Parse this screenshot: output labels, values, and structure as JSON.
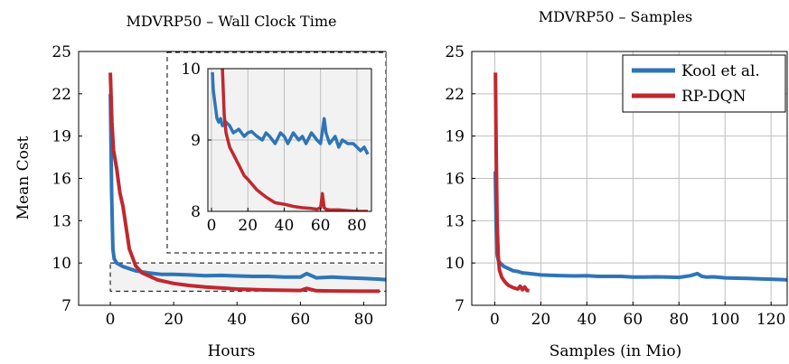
{
  "colors": {
    "kool": "#2e75b6",
    "rpdqn": "#c0282f",
    "grid": "#bfbfbf",
    "inset_bg": "#f2f2f2"
  },
  "chart_data": [
    {
      "type": "line",
      "title": "MDVRP50 – Wall Clock Time",
      "xlabel": "Hours",
      "ylabel": "Mean Cost",
      "xlim": [
        -10,
        87
      ],
      "ylim": [
        7,
        25
      ],
      "xticks": [
        0,
        20,
        40,
        60,
        80
      ],
      "yticks": [
        7,
        10,
        13,
        16,
        19,
        22,
        25
      ],
      "grid": false,
      "series": [
        {
          "name": "Kool et al.",
          "x": [
            0,
            0.4,
            0.8,
            1.2,
            2,
            4,
            8,
            12,
            16,
            20,
            25,
            30,
            35,
            40,
            45,
            50,
            55,
            60,
            62,
            65,
            70,
            75,
            80,
            85,
            87
          ],
          "y": [
            22,
            15,
            11,
            10.3,
            10.0,
            9.75,
            9.45,
            9.3,
            9.2,
            9.2,
            9.15,
            9.1,
            9.12,
            9.08,
            9.05,
            9.05,
            9.0,
            9.0,
            9.25,
            8.95,
            9.0,
            8.95,
            8.9,
            8.85,
            8.82
          ]
        },
        {
          "name": "RP-DQN",
          "x": [
            0,
            0.5,
            1,
            2,
            3,
            4,
            5,
            6,
            8,
            10,
            15,
            20,
            25,
            30,
            40,
            50,
            60,
            62,
            65,
            70,
            80,
            85
          ],
          "y": [
            23.5,
            20,
            18,
            16.7,
            15,
            14,
            12.5,
            11,
            9.8,
            9.3,
            8.8,
            8.55,
            8.4,
            8.3,
            8.15,
            8.08,
            8.05,
            8.2,
            8.03,
            8.02,
            8.0,
            8.0
          ]
        }
      ],
      "zoom_box": {
        "x": [
          0,
          87
        ],
        "y": [
          8,
          10
        ]
      },
      "inset": {
        "xlim": [
          -2,
          88
        ],
        "ylim": [
          8,
          10
        ],
        "xticks": [
          0,
          20,
          40,
          60,
          80
        ],
        "yticks": [
          8,
          9,
          10
        ],
        "grid": true,
        "series": [
          {
            "name": "Kool et al.",
            "x": [
              0.5,
              1,
              2,
              3,
              4,
              5,
              6,
              8,
              10,
              12,
              15,
              18,
              20,
              22,
              25,
              28,
              30,
              32,
              35,
              38,
              40,
              42,
              45,
              48,
              50,
              52,
              55,
              58,
              60,
              62,
              63,
              65,
              68,
              70,
              72,
              75,
              78,
              80,
              82,
              84,
              86
            ],
            "y": [
              9.95,
              9.7,
              9.5,
              9.3,
              9.25,
              9.3,
              9.2,
              9.25,
              9.2,
              9.1,
              9.15,
              9.05,
              9.1,
              9.12,
              9.05,
              9.0,
              9.1,
              9.05,
              8.95,
              9.1,
              9.05,
              8.95,
              9.1,
              9.0,
              9.05,
              8.95,
              9.1,
              9.0,
              8.95,
              9.3,
              9.1,
              8.95,
              9.05,
              8.9,
              9.0,
              8.95,
              8.95,
              8.9,
              8.85,
              8.9,
              8.8
            ]
          },
          {
            "name": "RP-DQN",
            "x": [
              6,
              7,
              8,
              10,
              12,
              15,
              18,
              20,
              25,
              30,
              35,
              40,
              45,
              50,
              55,
              58,
              60,
              61,
              62,
              63,
              65,
              70,
              75,
              80,
              86
            ],
            "y": [
              10,
              9.35,
              9.1,
              8.9,
              8.8,
              8.65,
              8.5,
              8.45,
              8.3,
              8.2,
              8.12,
              8.1,
              8.07,
              8.05,
              8.04,
              8.03,
              8.05,
              8.25,
              8.05,
              8.03,
              8.02,
              8.02,
              8.01,
              8.0,
              8.0
            ]
          }
        ]
      }
    },
    {
      "type": "line",
      "title": "MDVRP50 – Samples",
      "xlabel": "Samples (in Mio)",
      "ylabel": "",
      "xlim": [
        -10,
        127
      ],
      "ylim": [
        7,
        25
      ],
      "xticks": [
        0,
        20,
        40,
        60,
        80,
        100,
        120
      ],
      "yticks": [
        7,
        10,
        13,
        16,
        19,
        22,
        25
      ],
      "grid": true,
      "legend": "top-right",
      "series": [
        {
          "name": "Kool et al.",
          "x": [
            0.2,
            0.6,
            1,
            1.5,
            2,
            3,
            4,
            6,
            8,
            10,
            12,
            15,
            18,
            20,
            25,
            30,
            35,
            40,
            45,
            50,
            55,
            60,
            65,
            70,
            75,
            80,
            85,
            88,
            90,
            92,
            95,
            100,
            105,
            110,
            115,
            120,
            125,
            127
          ],
          "y": [
            16.5,
            12.5,
            10.6,
            10.2,
            10.05,
            9.9,
            9.75,
            9.6,
            9.45,
            9.4,
            9.3,
            9.25,
            9.2,
            9.15,
            9.12,
            9.1,
            9.08,
            9.1,
            9.05,
            9.05,
            9.05,
            9.0,
            9.0,
            9.02,
            9.0,
            8.98,
            9.1,
            9.25,
            9.05,
            9.0,
            9.02,
            8.95,
            8.92,
            8.9,
            8.88,
            8.85,
            8.82,
            8.8
          ]
        },
        {
          "name": "RP-DQN",
          "x": [
            0.3,
            0.6,
            1,
            1.5,
            2,
            3,
            4,
            5,
            6,
            8,
            10,
            11,
            12,
            13,
            14,
            15
          ],
          "y": [
            23.5,
            18,
            13,
            10.5,
            9.5,
            9.0,
            8.75,
            8.55,
            8.4,
            8.25,
            8.15,
            8.35,
            8.1,
            8.3,
            8.05,
            8.05
          ]
        }
      ]
    }
  ]
}
